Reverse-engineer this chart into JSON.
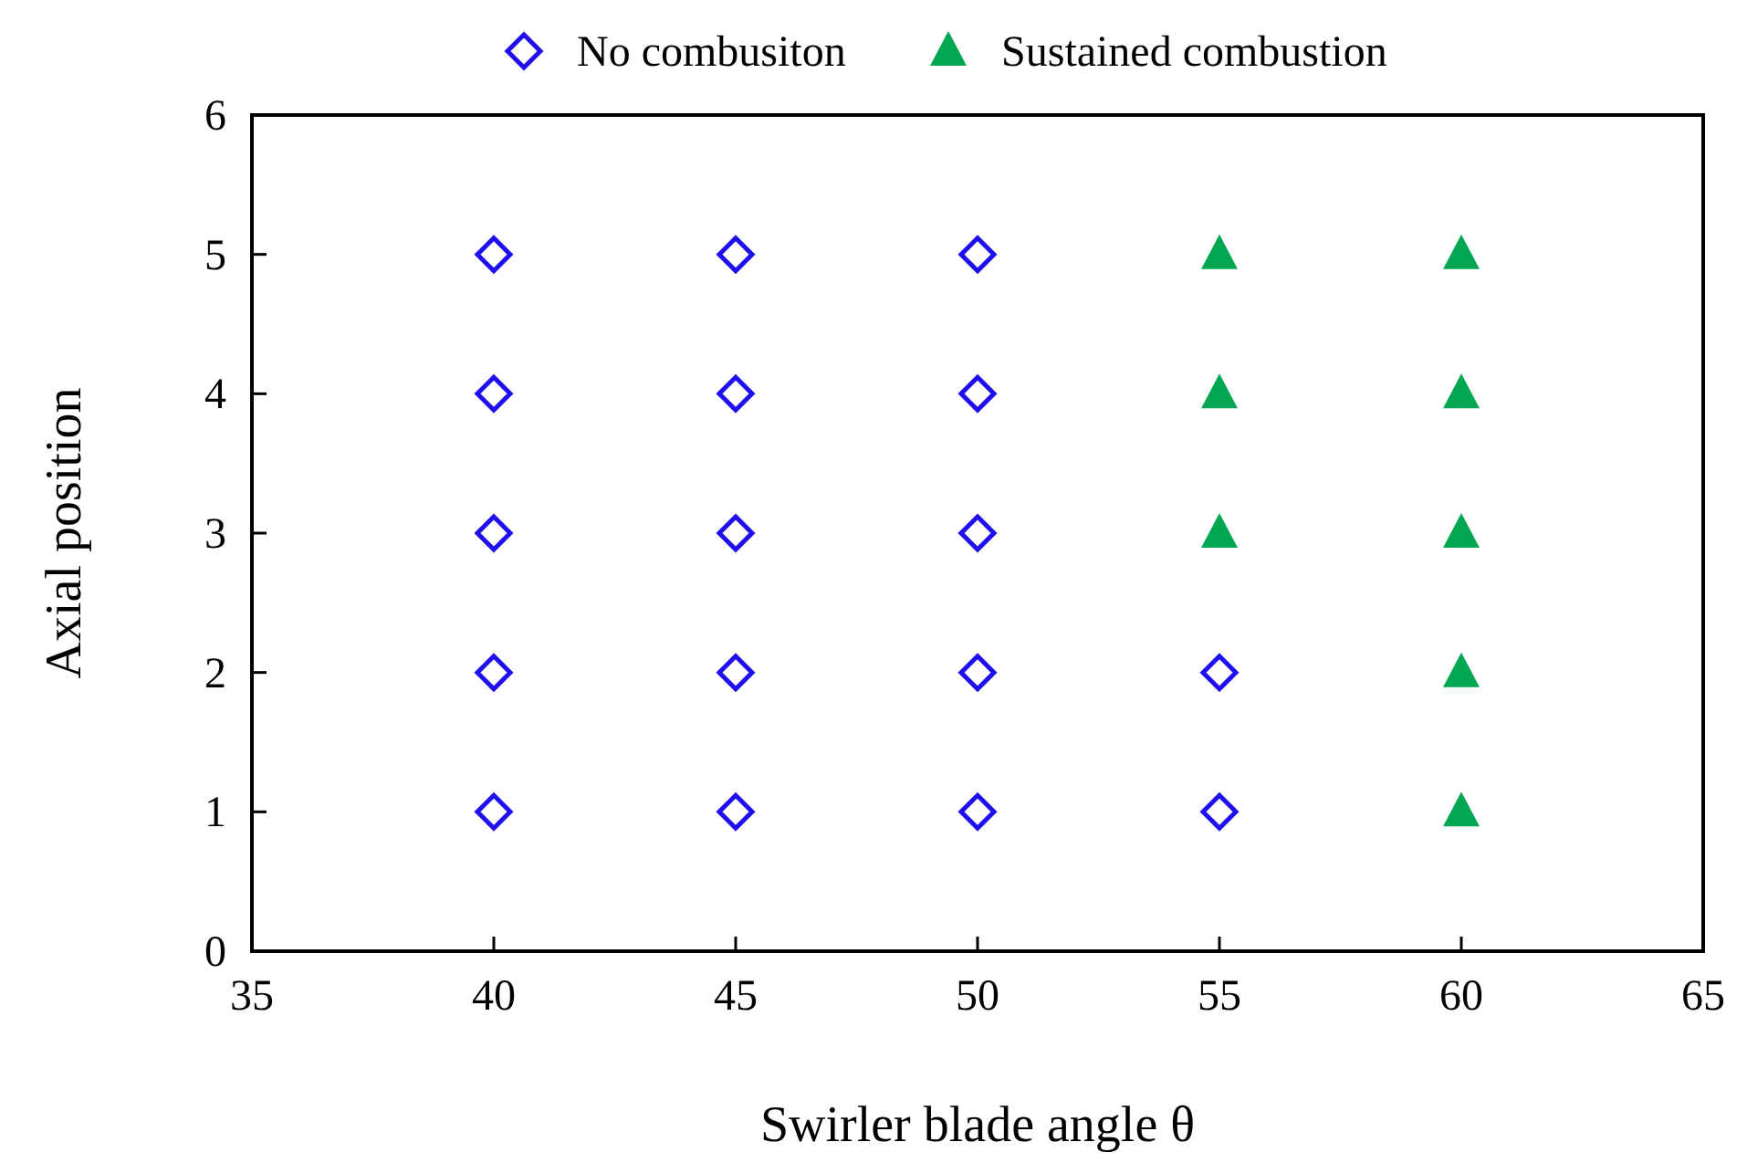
{
  "chart_data": {
    "type": "scatter",
    "xlabel": "Swirler blade angle θ",
    "ylabel": "Axial position",
    "xlim": [
      35,
      65
    ],
    "xticks": [
      35,
      40,
      45,
      50,
      55,
      60,
      65
    ],
    "ylim": [
      0,
      6
    ],
    "yticks": [
      0,
      1,
      2,
      3,
      4,
      5,
      6
    ],
    "grid": false,
    "legend": "top",
    "series": [
      {
        "name": "No combusiton",
        "color": "#1f0ff0",
        "marker": "diamond",
        "x": [
          40,
          40,
          40,
          40,
          40,
          45,
          45,
          45,
          45,
          45,
          50,
          50,
          50,
          50,
          50,
          55,
          55
        ],
        "values": [
          1,
          2,
          3,
          4,
          5,
          1,
          2,
          3,
          4,
          5,
          1,
          2,
          3,
          4,
          5,
          1,
          2
        ]
      },
      {
        "name": "Sustained combustion",
        "color": "#00a651",
        "marker": "triangle",
        "x": [
          55,
          55,
          55,
          60,
          60,
          60,
          60,
          60
        ],
        "values": [
          3,
          4,
          5,
          1,
          2,
          3,
          4,
          5
        ]
      }
    ]
  }
}
